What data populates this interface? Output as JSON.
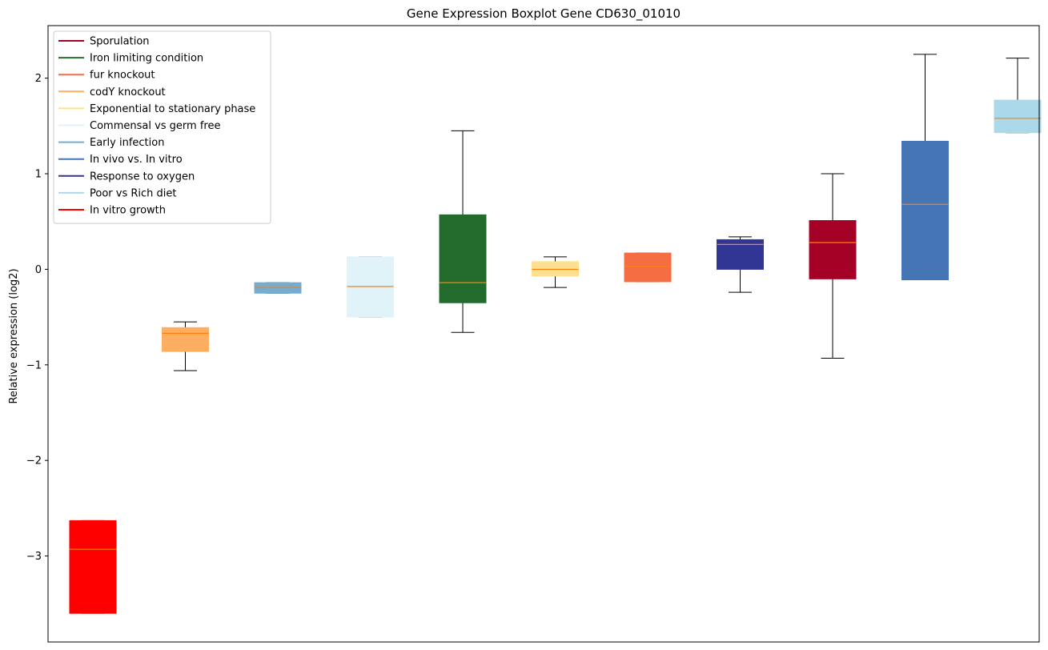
{
  "chart_data": {
    "type": "boxplot",
    "title": "Gene Expression Boxplot Gene CD630_01010",
    "ylabel": "Relative expression (log2)",
    "xlabel": "",
    "ylim": [
      -3.9,
      2.55
    ],
    "yticks": [
      -3,
      -2,
      -1,
      0,
      1,
      2
    ],
    "ytick_labels": [
      "−3",
      "−2",
      "−1",
      "0",
      "1",
      "2"
    ],
    "grid": false,
    "legend_position": "top-left",
    "median_color": "#ff7f0e",
    "series": [
      {
        "name": "In vitro growth",
        "color": "#ff0000",
        "min": -3.6,
        "q1": -3.6,
        "median": -2.93,
        "q3": -2.63,
        "max": -2.63
      },
      {
        "name": "codY knockout",
        "color": "#fdae61",
        "min": -1.06,
        "q1": -0.86,
        "median": -0.67,
        "q3": -0.61,
        "max": -0.55
      },
      {
        "name": "Early infection",
        "color": "#74add1",
        "min": -0.25,
        "q1": -0.25,
        "median": -0.19,
        "q3": -0.14,
        "max": -0.14
      },
      {
        "name": "Commensal vs germ free",
        "color": "#e0f3f8",
        "min": -0.5,
        "q1": -0.5,
        "median": -0.18,
        "q3": 0.13,
        "max": 0.13
      },
      {
        "name": "Iron limiting condition",
        "color": "#226b2d",
        "min": -0.66,
        "q1": -0.35,
        "median": -0.14,
        "q3": 0.57,
        "max": 1.45
      },
      {
        "name": "Exponential to stationary phase",
        "color": "#fee090",
        "min": -0.19,
        "q1": -0.07,
        "median": 0.0,
        "q3": 0.08,
        "max": 0.13
      },
      {
        "name": "fur knockout",
        "color": "#f46d43",
        "min": -0.13,
        "q1": -0.13,
        "median": 0.03,
        "q3": 0.17,
        "max": 0.17
      },
      {
        "name": "Response to oxygen",
        "color": "#313695",
        "min": -0.24,
        "q1": 0.0,
        "median": 0.26,
        "q3": 0.31,
        "max": 0.34
      },
      {
        "name": "Sporulation",
        "color": "#a50026",
        "min": -0.93,
        "q1": -0.1,
        "median": 0.28,
        "q3": 0.51,
        "max": 1.0
      },
      {
        "name": "In vivo vs. In vitro",
        "color": "#4575b4",
        "min": -0.11,
        "q1": -0.11,
        "median": 0.68,
        "q3": 1.34,
        "max": 2.25
      },
      {
        "name": "Poor vs Rich diet",
        "color": "#abd9e9",
        "min": 1.43,
        "q1": 1.43,
        "median": 1.58,
        "q3": 1.77,
        "max": 2.21
      }
    ],
    "legend_entries": [
      {
        "label": "Sporulation",
        "color": "#a50026"
      },
      {
        "label": "Iron limiting condition",
        "color": "#226b2d"
      },
      {
        "label": "fur knockout",
        "color": "#f46d43"
      },
      {
        "label": "codY knockout",
        "color": "#fdae61"
      },
      {
        "label": "Exponential to stationary phase",
        "color": "#fee090"
      },
      {
        "label": "Commensal vs germ free",
        "color": "#e0f3f8"
      },
      {
        "label": "Early infection",
        "color": "#74add1"
      },
      {
        "label": "In vivo vs. In vitro",
        "color": "#4575b4"
      },
      {
        "label": "Response to oxygen",
        "color": "#313695"
      },
      {
        "label": "Poor vs Rich diet",
        "color": "#abd9e9"
      },
      {
        "label": "In vitro growth",
        "color": "#ff0000"
      }
    ]
  }
}
